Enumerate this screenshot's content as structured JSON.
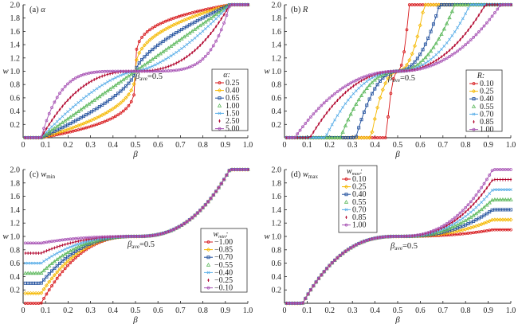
{
  "chart_data": [
    {
      "type": "line",
      "panel": "a",
      "title": "(a) α",
      "xlabel": "β",
      "ylabel": "w",
      "xlim": [
        0,
        1.0
      ],
      "ylim": [
        0,
        2.0
      ],
      "xticks": [
        "0",
        "0.1",
        "0.2",
        "0.3",
        "0.4",
        "0.5",
        "0.6",
        "0.7",
        "0.8",
        "0.9",
        "1.0"
      ],
      "yticks": [
        "0.2",
        "0.4",
        "0.6",
        "0.8",
        "1.0",
        "1.2",
        "1.4",
        "1.6",
        "1.8",
        "2.0"
      ],
      "annotation": "β_ave=0.5",
      "legend_title": "α:",
      "legend_position": "right-lower",
      "model": {
        "beta_min": 0.08,
        "beta_ave": 0.5,
        "beta_max": 0.92,
        "w_min": 0,
        "w_ave": 1.0,
        "w_max": 2.0,
        "param": "alpha",
        "R": 1.0
      },
      "series": [
        {
          "name": "0.25",
          "param": 0.25,
          "color": "#d7191c",
          "marker": "circle"
        },
        {
          "name": "0.40",
          "param": 0.4,
          "color": "#f5b800",
          "marker": "diamond"
        },
        {
          "name": "0.65",
          "param": 0.65,
          "color": "#1f4e9c",
          "marker": "square"
        },
        {
          "name": "1.00",
          "param": 1.0,
          "color": "#5cb85c",
          "marker": "triangle"
        },
        {
          "name": "1.50",
          "param": 1.5,
          "color": "#5aaee8",
          "marker": "x"
        },
        {
          "name": "2.50",
          "param": 2.5,
          "color": "#b0002a",
          "marker": "plus"
        },
        {
          "name": "5.00",
          "param": 5.0,
          "color": "#a855b5",
          "marker": "circle"
        }
      ]
    },
    {
      "type": "line",
      "panel": "b",
      "title": "(b) R",
      "xlabel": "β",
      "ylabel": "w",
      "xlim": [
        0,
        1.0
      ],
      "ylim": [
        0,
        2.0
      ],
      "xticks": [
        "0",
        "0.1",
        "0.2",
        "0.3",
        "0.4",
        "0.5",
        "0.6",
        "0.7",
        "0.8",
        "0.9",
        "1.0"
      ],
      "yticks": [
        "0.2",
        "0.4",
        "0.6",
        "0.8",
        "1.0",
        "1.2",
        "1.4",
        "1.6",
        "1.8",
        "2.0"
      ],
      "annotation": "β_ave=0.5",
      "legend_title": "R:",
      "legend_position": "right-lower",
      "model": {
        "beta_ave": 0.5,
        "w_min": 0,
        "w_ave": 1.0,
        "w_max": 2.0,
        "param": "R",
        "alpha": 2.5
      },
      "series": [
        {
          "name": "0.10",
          "param": 0.1,
          "color": "#d7191c",
          "marker": "circle"
        },
        {
          "name": "0.25",
          "param": 0.25,
          "color": "#f5b800",
          "marker": "diamond"
        },
        {
          "name": "0.40",
          "param": 0.4,
          "color": "#1f4e9c",
          "marker": "square"
        },
        {
          "name": "0.55",
          "param": 0.55,
          "color": "#5cb85c",
          "marker": "triangle"
        },
        {
          "name": "0.70",
          "param": 0.7,
          "color": "#5aaee8",
          "marker": "x"
        },
        {
          "name": "0.85",
          "param": 0.85,
          "color": "#b0002a",
          "marker": "plus"
        },
        {
          "name": "1.00",
          "param": 1.0,
          "color": "#a855b5",
          "marker": "circle"
        }
      ]
    },
    {
      "type": "line",
      "panel": "c",
      "title": "(c) w_min",
      "xlabel": "β",
      "ylabel": "w",
      "xlim": [
        0,
        1.0
      ],
      "ylim": [
        0,
        2.0
      ],
      "xticks": [
        "0",
        "0.1",
        "0.2",
        "0.3",
        "0.4",
        "0.5",
        "0.6",
        "0.7",
        "0.8",
        "0.9",
        "1.0"
      ],
      "yticks": [
        "0.2",
        "0.4",
        "0.6",
        "0.8",
        "1.0",
        "1.2",
        "1.4",
        "1.6",
        "1.8",
        "2.0"
      ],
      "annotation": "β_ave=0.5",
      "legend_title": "w_min:",
      "legend_position": "right-lower",
      "model": {
        "beta_min": 0.08,
        "beta_ave": 0.5,
        "beta_max": 0.92,
        "w_ave": 1.0,
        "w_max": 2.0,
        "param": "w_min_offset",
        "alpha": 2.5
      },
      "series": [
        {
          "name": "−1.00",
          "param": 0.0,
          "color": "#d7191c",
          "marker": "circle"
        },
        {
          "name": "−0.85",
          "param": 0.15,
          "color": "#f5b800",
          "marker": "diamond"
        },
        {
          "name": "−0.70",
          "param": 0.3,
          "color": "#1f4e9c",
          "marker": "square"
        },
        {
          "name": "−0.55",
          "param": 0.45,
          "color": "#5cb85c",
          "marker": "triangle"
        },
        {
          "name": "−0.40",
          "param": 0.6,
          "color": "#5aaee8",
          "marker": "x"
        },
        {
          "name": "−0.25",
          "param": 0.75,
          "color": "#b0002a",
          "marker": "plus"
        },
        {
          "name": "−0.10",
          "param": 0.9,
          "color": "#a855b5",
          "marker": "circle"
        }
      ]
    },
    {
      "type": "line",
      "panel": "d",
      "title": "(d) w_max",
      "xlabel": "β",
      "ylabel": "w",
      "xlim": [
        0,
        1.0
      ],
      "ylim": [
        0,
        2.0
      ],
      "xticks": [
        "0",
        "0.1",
        "0.2",
        "0.3",
        "0.4",
        "0.5",
        "0.6",
        "0.7",
        "0.8",
        "0.9",
        "1.0"
      ],
      "yticks": [
        "0.2",
        "0.4",
        "0.6",
        "0.8",
        "1.0",
        "1.2",
        "1.4",
        "1.6",
        "1.8",
        "2.0"
      ],
      "annotation": "β_ave=0.5",
      "legend_title": "w_max:",
      "legend_position": "top-left",
      "model": {
        "beta_min": 0.08,
        "beta_ave": 0.5,
        "beta_max": 0.92,
        "w_min": 0,
        "w_ave": 1.0,
        "param": "w_max_offset",
        "alpha": 2.5
      },
      "series": [
        {
          "name": "0.10",
          "param": 1.1,
          "color": "#d7191c",
          "marker": "circle"
        },
        {
          "name": "0.25",
          "param": 1.25,
          "color": "#f5b800",
          "marker": "diamond"
        },
        {
          "name": "0.40",
          "param": 1.4,
          "color": "#1f4e9c",
          "marker": "square"
        },
        {
          "name": "0.55",
          "param": 1.55,
          "color": "#5cb85c",
          "marker": "triangle"
        },
        {
          "name": "0.70",
          "param": 1.7,
          "color": "#5aaee8",
          "marker": "x"
        },
        {
          "name": "0.85",
          "param": 1.85,
          "color": "#b0002a",
          "marker": "plus"
        },
        {
          "name": "1.00",
          "param": 2.0,
          "color": "#a855b5",
          "marker": "circle"
        }
      ]
    }
  ]
}
